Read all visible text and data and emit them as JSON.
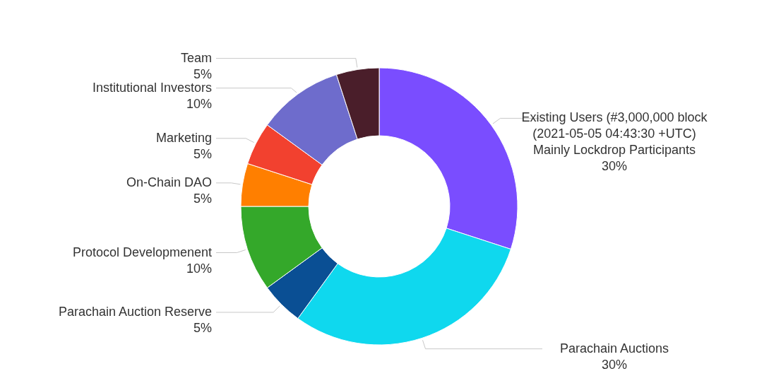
{
  "chart_data": {
    "type": "donut",
    "categories": [
      "Existing Users (#3,000,000 block\n(2021-05-05 04:43:30 +UTC)\nMainly Lockdrop Participants",
      "Parachain Auctions",
      "Parachain Auction Reserve",
      "Protocol Developmenent",
      "On-Chain DAO",
      "Marketing",
      "Institutional Investors",
      "Team"
    ],
    "values": [
      30,
      30,
      5,
      10,
      5,
      5,
      10,
      5
    ],
    "value_labels": [
      "30%",
      "30%",
      "5%",
      "10%",
      "5%",
      "5%",
      "10%",
      "5%"
    ],
    "colors": [
      "#7a4dff",
      "#0fd8ee",
      "#0a4f94",
      "#34a82a",
      "#ff7f00",
      "#f2412f",
      "#6e6ccc",
      "#4a1e2a"
    ]
  }
}
